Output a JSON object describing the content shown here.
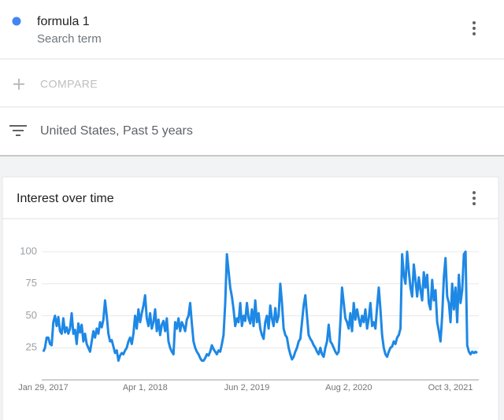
{
  "header": {
    "term": "formula 1",
    "term_subtitle": "Search term"
  },
  "compare": {
    "label": "COMPARE"
  },
  "filter": {
    "label": "United States, Past 5 years"
  },
  "chart_data": {
    "type": "line",
    "title": "Interest over time",
    "color": "#1e88e5",
    "ylim": [
      0,
      100
    ],
    "yticks": [
      25,
      50,
      75,
      100
    ],
    "grid": true,
    "categories": [
      "Jan 29, 2017",
      null,
      null,
      null,
      null,
      null,
      null,
      null,
      null,
      null,
      null,
      null,
      null,
      null,
      null,
      null,
      null,
      null,
      null,
      null,
      null,
      null,
      null,
      null,
      null,
      null,
      null,
      null,
      null,
      null,
      null,
      null,
      null,
      null,
      null,
      null,
      null,
      null,
      null,
      null,
      null,
      null,
      null,
      null,
      null,
      null,
      null,
      null,
      null,
      null,
      null,
      null,
      null,
      null,
      null,
      null,
      null,
      null,
      null,
      null,
      null,
      "Apr 1, 2018",
      null,
      null,
      null,
      null,
      null,
      null,
      null,
      null,
      null,
      null,
      null,
      null,
      null,
      null,
      null,
      null,
      null,
      null,
      null,
      null,
      null,
      null,
      null,
      null,
      null,
      null,
      null,
      null,
      null,
      null,
      null,
      null,
      null,
      null,
      null,
      null,
      null,
      null,
      null,
      null,
      null,
      null,
      null,
      null,
      null,
      null,
      null,
      null,
      null,
      null,
      null,
      null,
      null,
      null,
      null,
      null,
      null,
      null,
      null,
      null,
      "Jun 2, 2019",
      null,
      null,
      null,
      null,
      null,
      null,
      null,
      null,
      null,
      null,
      null,
      null,
      null,
      null,
      null,
      null,
      null,
      null,
      null,
      null,
      null,
      null,
      null,
      null,
      null,
      null,
      null,
      null,
      null,
      null,
      null,
      null,
      null,
      null,
      null,
      null,
      null,
      null,
      null,
      null,
      null,
      null,
      null,
      null,
      null,
      null,
      null,
      null,
      null,
      null,
      null,
      null,
      null,
      null,
      null,
      null,
      null,
      null,
      null,
      null,
      "Aug 2, 2020",
      null,
      null,
      null,
      null,
      null,
      null,
      null,
      null,
      null,
      null,
      null,
      null,
      null,
      null,
      null,
      null,
      null,
      null,
      null,
      null,
      null,
      null,
      null,
      null,
      null,
      null,
      null,
      null,
      null,
      null,
      null,
      null,
      null,
      null,
      null,
      null,
      null,
      null,
      null,
      null,
      null,
      null,
      null,
      null,
      null,
      null,
      null,
      null,
      null,
      null,
      null,
      null,
      null,
      null,
      null,
      null,
      null,
      null,
      null,
      null,
      "Oct 3, 2021",
      null,
      null,
      null,
      null,
      null,
      null,
      null,
      null,
      null,
      null,
      null,
      null,
      null,
      null,
      null,
      null
    ],
    "values": [
      22,
      25,
      33,
      33,
      28,
      27,
      45,
      50,
      42,
      49,
      38,
      36,
      48,
      37,
      41,
      36,
      40,
      52,
      36,
      39,
      28,
      44,
      37,
      43,
      30,
      36,
      28,
      25,
      22,
      30,
      38,
      33,
      40,
      36,
      45,
      41,
      47,
      62,
      50,
      36,
      30,
      31,
      26,
      21,
      23,
      15,
      19,
      21,
      20,
      23,
      25,
      30,
      33,
      28,
      36,
      50,
      40,
      55,
      45,
      52,
      58,
      66,
      48,
      42,
      52,
      40,
      45,
      55,
      38,
      47,
      35,
      43,
      46,
      38,
      48,
      30,
      25,
      22,
      20,
      45,
      40,
      48,
      38,
      45,
      42,
      38,
      47,
      50,
      60,
      44,
      30,
      25,
      22,
      20,
      17,
      15,
      15,
      17,
      20,
      19,
      22,
      27,
      24,
      22,
      20,
      23,
      22,
      28,
      35,
      60,
      98,
      85,
      72,
      65,
      55,
      42,
      48,
      45,
      60,
      42,
      50,
      46,
      60,
      48,
      44,
      55,
      42,
      62,
      45,
      52,
      40,
      35,
      32,
      45,
      50,
      40,
      58,
      48,
      42,
      56,
      45,
      50,
      75,
      60,
      40,
      35,
      33,
      25,
      20,
      16,
      18,
      22,
      25,
      30,
      32,
      45,
      58,
      66,
      50,
      35,
      32,
      30,
      27,
      25,
      22,
      20,
      25,
      20,
      18,
      25,
      30,
      43,
      30,
      28,
      25,
      22,
      20,
      22,
      45,
      72,
      60,
      48,
      45,
      40,
      52,
      38,
      60,
      47,
      55,
      48,
      42,
      50,
      45,
      55,
      40,
      48,
      60,
      42,
      45,
      40,
      57,
      72,
      55,
      35,
      25,
      20,
      18,
      22,
      25,
      26,
      30,
      28,
      33,
      35,
      40,
      98,
      82,
      75,
      100,
      85,
      72,
      65,
      90,
      78,
      65,
      80,
      70,
      62,
      84,
      72,
      82,
      60,
      55,
      78,
      62,
      70,
      45,
      38,
      30,
      50,
      80,
      95,
      65,
      60,
      45,
      75,
      55,
      72,
      45,
      82,
      60,
      70,
      98,
      100,
      27,
      22,
      20,
      22,
      21,
      22,
      21
    ]
  }
}
